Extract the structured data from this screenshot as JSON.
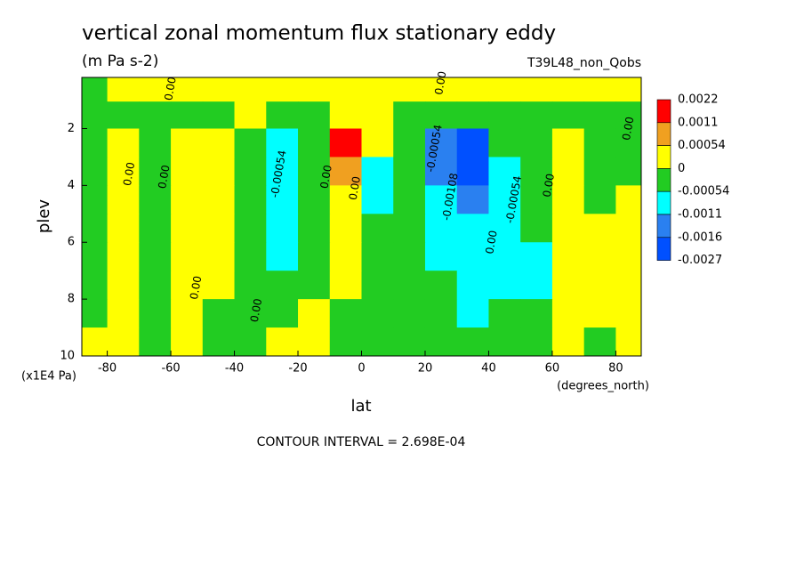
{
  "chart_data": {
    "type": "contour",
    "title": "vertical zonal momentum flux stationary eddy",
    "units": "(m Pa s-2)",
    "dataset": "T39L48_non_Qobs",
    "x_label": "lat",
    "x_units": "(degrees_north)",
    "y_label": "plev",
    "y_units": "(x1E4 Pa)",
    "footer": "CONTOUR INTERVAL = 2.698E-04",
    "xlim": [
      -88,
      88
    ],
    "xticks": [
      -80,
      -60,
      -40,
      -20,
      0,
      20,
      40,
      60,
      80
    ],
    "ylim": [
      10,
      0.2
    ],
    "yticks": [
      2,
      4,
      6,
      8,
      10
    ],
    "x": [
      -85,
      -75,
      -65,
      -55,
      -45,
      -35,
      -25,
      -15,
      -5,
      5,
      15,
      25,
      35,
      45,
      55,
      65,
      75,
      85
    ],
    "y": [
      0.6,
      1.5,
      2.5,
      3.5,
      4.5,
      5.5,
      6.5,
      7.5,
      8.5,
      9.5
    ],
    "z": [
      [
        -0.0003,
        0.0002,
        0.0002,
        0.0002,
        0.0002,
        0.0002,
        0.0002,
        0.0002,
        0.0002,
        0.0002,
        0.0002,
        0.0002,
        0.0002,
        0.0002,
        0.0002,
        0.0002,
        0.0002,
        0.0002
      ],
      [
        -0.0003,
        -0.0003,
        -0.0003,
        -0.0003,
        -0.0003,
        0.0002,
        -0.0003,
        -0.0003,
        0.0002,
        0.0002,
        -0.0003,
        -0.0003,
        -0.0003,
        -0.0003,
        -0.0003,
        -0.0003,
        -0.0003,
        -0.0003
      ],
      [
        -0.0003,
        0.0002,
        -0.0003,
        0.0002,
        0.0002,
        -0.0003,
        -0.0008,
        -0.0003,
        0.0015,
        0.0002,
        -0.0003,
        -0.0013,
        -0.002,
        -0.0003,
        -0.0003,
        0.0002,
        -0.0003,
        -0.0003
      ],
      [
        -0.0003,
        0.0002,
        -0.0003,
        0.0002,
        0.0002,
        -0.0003,
        -0.0008,
        -0.0003,
        0.0008,
        -0.0008,
        -0.0003,
        -0.0013,
        -0.002,
        -0.0008,
        -0.0003,
        0.0002,
        -0.0003,
        -0.0003
      ],
      [
        -0.0003,
        0.0002,
        -0.0003,
        0.0002,
        0.0002,
        -0.0003,
        -0.0008,
        -0.0003,
        0.0002,
        -0.0008,
        -0.0003,
        -0.0008,
        -0.0013,
        -0.0008,
        -0.0003,
        0.0002,
        -0.0003,
        0.0002
      ],
      [
        -0.0003,
        0.0002,
        -0.0003,
        0.0002,
        0.0002,
        -0.0003,
        -0.0008,
        -0.0003,
        0.0002,
        -0.0003,
        -0.0003,
        -0.0008,
        -0.0008,
        -0.0008,
        -0.0003,
        0.0002,
        0.0002,
        0.0002
      ],
      [
        -0.0003,
        0.0002,
        -0.0003,
        0.0002,
        0.0002,
        -0.0003,
        -0.0008,
        -0.0003,
        0.0002,
        -0.0003,
        -0.0003,
        -0.0008,
        -0.0008,
        -0.0008,
        -0.0008,
        0.0002,
        0.0002,
        0.0002
      ],
      [
        -0.0003,
        0.0002,
        -0.0003,
        0.0002,
        0.0002,
        -0.0003,
        -0.0003,
        -0.0003,
        0.0002,
        -0.0003,
        -0.0003,
        -0.0003,
        -0.0008,
        -0.0008,
        -0.0008,
        0.0002,
        0.0002,
        0.0002
      ],
      [
        -0.0003,
        0.0002,
        -0.0003,
        0.0002,
        -0.0003,
        -0.0003,
        -0.0003,
        0.0002,
        -0.0003,
        -0.0003,
        -0.0003,
        -0.0003,
        -0.0008,
        -0.0003,
        -0.0003,
        0.0002,
        0.0002,
        0.0002
      ],
      [
        0.0002,
        0.0002,
        -0.0003,
        0.0002,
        -0.0003,
        -0.0003,
        0.0002,
        0.0002,
        -0.0003,
        -0.0003,
        -0.0003,
        -0.0003,
        -0.0003,
        -0.0003,
        -0.0003,
        0.0002,
        -0.0003,
        0.0002
      ]
    ],
    "colorbar": {
      "levels": [
        0.0022,
        0.0011,
        0.00054,
        0,
        -0.00054,
        -0.0011,
        -0.0016,
        -0.0027
      ],
      "colors": [
        "#ff0000",
        "#f0a020",
        "#ffff00",
        "#22cc22",
        "#00ffff",
        "#2a80f0",
        "#0050ff"
      ]
    },
    "contour_labels": [
      {
        "text": "0.00",
        "x": -60,
        "y": 0.6
      },
      {
        "text": "0.00",
        "x": 25,
        "y": 0.4
      },
      {
        "text": "0.00",
        "x": -73,
        "y": 3.6
      },
      {
        "text": "0.00",
        "x": -62,
        "y": 3.7
      },
      {
        "text": "0.00",
        "x": -52,
        "y": 7.6
      },
      {
        "text": "0.00",
        "x": -33,
        "y": 8.4
      },
      {
        "text": "-0.00054",
        "x": -26,
        "y": 3.6
      },
      {
        "text": "0.00",
        "x": -11,
        "y": 3.7
      },
      {
        "text": "0.00",
        "x": -2,
        "y": 4.1
      },
      {
        "text": "-0.00054",
        "x": 23,
        "y": 2.7
      },
      {
        "text": "-0.00108",
        "x": 28,
        "y": 4.4
      },
      {
        "text": "0.00",
        "x": 41,
        "y": 6.0
      },
      {
        "text": "-0.00054",
        "x": 48,
        "y": 4.5
      },
      {
        "text": "0.00",
        "x": 59,
        "y": 4.0
      },
      {
        "text": "0.00",
        "x": 84,
        "y": 2.0
      }
    ]
  }
}
